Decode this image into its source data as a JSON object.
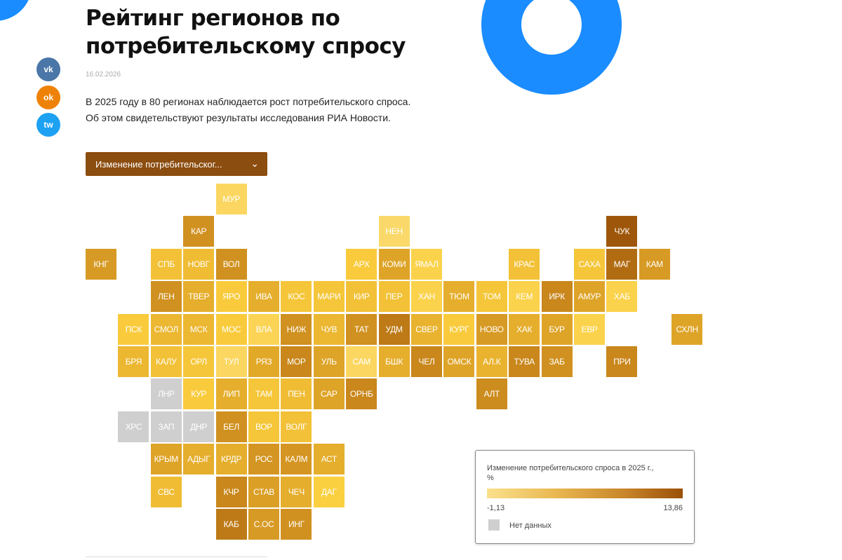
{
  "header": {
    "title": "Рейтинг регионов по потребительскому спросу",
    "date": "16.02.2026",
    "lead_line1": "В 2025 году в 80 регионах наблюдается рост потребительского спроса.",
    "lead_line2": "Об этом свидетельствуют результаты исследования РИА Новости."
  },
  "social": [
    {
      "label": "vk",
      "icon": "vk-icon",
      "color": "#4a76a8"
    },
    {
      "label": "ok",
      "icon": "odnoklassniki-icon",
      "color": "#ee8208"
    },
    {
      "label": "tw",
      "icon": "twitter-icon",
      "color": "#1da1f2"
    }
  ],
  "dropdown": {
    "label": "Изменение потребительског...",
    "chevron": "⌄"
  },
  "colors": {
    "brand_blue": "#1a8cff",
    "nodata": "#cfcfcf",
    "scale": [
      "#fae08c",
      "#fbcf3e",
      "#e3aa2a",
      "#c8861c",
      "#9a5208"
    ]
  },
  "chart_data": {
    "type": "heatmap",
    "subtype": "tile-grid-map",
    "title": "Изменение потребительского спроса в 2025 г., %",
    "range": [
      -1.13,
      13.86
    ],
    "range_labels": [
      "-1,13",
      "13,86"
    ],
    "nodata_label": "Нет данных",
    "note": "values estimated from tile color",
    "regions": [
      {
        "code": "МУР",
        "col": 4,
        "row": 0,
        "value": 1
      },
      {
        "code": "КАР",
        "col": 3,
        "row": 1,
        "value": 9
      },
      {
        "code": "НЕН",
        "col": 9,
        "row": 1,
        "value": 0.5
      },
      {
        "code": "ЧУК",
        "col": 16,
        "row": 1,
        "value": 13.5
      },
      {
        "code": "КНГ",
        "col": 0,
        "row": 2,
        "value": 8
      },
      {
        "code": "СПБ",
        "col": 2,
        "row": 2,
        "value": 4
      },
      {
        "code": "НОВГ",
        "col": 3,
        "row": 2,
        "value": 4.5
      },
      {
        "code": "ВОЛ",
        "col": 4,
        "row": 2,
        "value": 9
      },
      {
        "code": "АРХ",
        "col": 8,
        "row": 2,
        "value": 3
      },
      {
        "code": "КОМИ",
        "col": 9,
        "row": 2,
        "value": 7
      },
      {
        "code": "ЯМАЛ",
        "col": 10,
        "row": 2,
        "value": 2
      },
      {
        "code": "КРАС",
        "col": 13,
        "row": 2,
        "value": 4
      },
      {
        "code": "САХА",
        "col": 15,
        "row": 2,
        "value": 3.5
      },
      {
        "code": "МАГ",
        "col": 16,
        "row": 2,
        "value": 12
      },
      {
        "code": "КАМ",
        "col": 17,
        "row": 2,
        "value": 8
      },
      {
        "code": "ЛЕН",
        "col": 2,
        "row": 3,
        "value": 9
      },
      {
        "code": "ТВЕР",
        "col": 3,
        "row": 3,
        "value": 6
      },
      {
        "code": "ЯРО",
        "col": 4,
        "row": 3,
        "value": 3
      },
      {
        "code": "ИВА",
        "col": 5,
        "row": 3,
        "value": 6
      },
      {
        "code": "КОС",
        "col": 6,
        "row": 3,
        "value": 3.5
      },
      {
        "code": "МАРИ",
        "col": 7,
        "row": 3,
        "value": 3.5
      },
      {
        "code": "КИР",
        "col": 8,
        "row": 3,
        "value": 4
      },
      {
        "code": "ПЕР",
        "col": 9,
        "row": 3,
        "value": 4
      },
      {
        "code": "ХАН",
        "col": 10,
        "row": 3,
        "value": 2
      },
      {
        "code": "ТЮМ",
        "col": 11,
        "row": 3,
        "value": 6
      },
      {
        "code": "ТОМ",
        "col": 12,
        "row": 3,
        "value": 3.5
      },
      {
        "code": "КЕМ",
        "col": 13,
        "row": 3,
        "value": 2
      },
      {
        "code": "ИРК",
        "col": 14,
        "row": 3,
        "value": 10
      },
      {
        "code": "АМУР",
        "col": 15,
        "row": 3,
        "value": 7
      },
      {
        "code": "ХАБ",
        "col": 16,
        "row": 3,
        "value": 2
      },
      {
        "code": "ПСК",
        "col": 1,
        "row": 4,
        "value": 3
      },
      {
        "code": "СМОЛ",
        "col": 2,
        "row": 4,
        "value": 5
      },
      {
        "code": "МСК",
        "col": 3,
        "row": 4,
        "value": 5
      },
      {
        "code": "МОС",
        "col": 4,
        "row": 4,
        "value": 3
      },
      {
        "code": "ВЛА",
        "col": 5,
        "row": 4,
        "value": 1.5
      },
      {
        "code": "НИЖ",
        "col": 6,
        "row": 4,
        "value": 9
      },
      {
        "code": "ЧУВ",
        "col": 7,
        "row": 4,
        "value": 5
      },
      {
        "code": "ТАТ",
        "col": 8,
        "row": 4,
        "value": 9
      },
      {
        "code": "УДМ",
        "col": 9,
        "row": 4,
        "value": 11
      },
      {
        "code": "СВЕР",
        "col": 10,
        "row": 4,
        "value": 5.5
      },
      {
        "code": "КУРГ",
        "col": 11,
        "row": 4,
        "value": 3
      },
      {
        "code": "НОВО",
        "col": 12,
        "row": 4,
        "value": 8
      },
      {
        "code": "ХАК",
        "col": 13,
        "row": 4,
        "value": 6
      },
      {
        "code": "БУР",
        "col": 14,
        "row": 4,
        "value": 7
      },
      {
        "code": "ЕВР",
        "col": 15,
        "row": 4,
        "value": 2
      },
      {
        "code": "СХЛН",
        "col": 18,
        "row": 4,
        "value": 7
      },
      {
        "code": "БРЯ",
        "col": 1,
        "row": 5,
        "value": 5
      },
      {
        "code": "КАЛУ",
        "col": 2,
        "row": 5,
        "value": 4
      },
      {
        "code": "ОРЛ",
        "col": 3,
        "row": 5,
        "value": 3.5
      },
      {
        "code": "ТУЛ",
        "col": 4,
        "row": 5,
        "value": 1
      },
      {
        "code": "РЯЗ",
        "col": 5,
        "row": 5,
        "value": 6.5
      },
      {
        "code": "МОР",
        "col": 6,
        "row": 5,
        "value": 10
      },
      {
        "code": "УЛЬ",
        "col": 7,
        "row": 5,
        "value": 7
      },
      {
        "code": "САМ",
        "col": 8,
        "row": 5,
        "value": 1
      },
      {
        "code": "БШК",
        "col": 9,
        "row": 5,
        "value": 6
      },
      {
        "code": "ЧЕЛ",
        "col": 10,
        "row": 5,
        "value": 10
      },
      {
        "code": "ОМСК",
        "col": 11,
        "row": 5,
        "value": 7
      },
      {
        "code": "АЛ.К",
        "col": 12,
        "row": 5,
        "value": 5.5
      },
      {
        "code": "ТУВА",
        "col": 13,
        "row": 5,
        "value": 10
      },
      {
        "code": "ЗАБ",
        "col": 14,
        "row": 5,
        "value": 9
      },
      {
        "code": "ПРИ",
        "col": 16,
        "row": 5,
        "value": 10
      },
      {
        "code": "ЛНР",
        "col": 2,
        "row": 6,
        "value": null
      },
      {
        "code": "КУР",
        "col": 3,
        "row": 6,
        "value": 3
      },
      {
        "code": "ЛИП",
        "col": 4,
        "row": 6,
        "value": 6
      },
      {
        "code": "ТАМ",
        "col": 5,
        "row": 6,
        "value": 3.5
      },
      {
        "code": "ПЕН",
        "col": 6,
        "row": 6,
        "value": 4.5
      },
      {
        "code": "САР",
        "col": 7,
        "row": 6,
        "value": 7
      },
      {
        "code": "ОРНБ",
        "col": 8,
        "row": 6,
        "value": 10
      },
      {
        "code": "АЛТ",
        "col": 12,
        "row": 6,
        "value": 9.5
      },
      {
        "code": "ХРС",
        "col": 1,
        "row": 7,
        "value": null
      },
      {
        "code": "ЗАП",
        "col": 2,
        "row": 7,
        "value": null
      },
      {
        "code": "ДНР",
        "col": 3,
        "row": 7,
        "value": null
      },
      {
        "code": "БЕЛ",
        "col": 4,
        "row": 7,
        "value": 9
      },
      {
        "code": "ВОР",
        "col": 5,
        "row": 7,
        "value": 3.5
      },
      {
        "code": "ВОЛГ",
        "col": 6,
        "row": 7,
        "value": 4
      },
      {
        "code": "КРЫМ",
        "col": 2,
        "row": 8,
        "value": 7
      },
      {
        "code": "АДЫГ",
        "col": 3,
        "row": 8,
        "value": 6
      },
      {
        "code": "КРДР",
        "col": 4,
        "row": 8,
        "value": 6
      },
      {
        "code": "РОС",
        "col": 5,
        "row": 8,
        "value": 8.5
      },
      {
        "code": "КАЛМ",
        "col": 6,
        "row": 8,
        "value": 8.5
      },
      {
        "code": "АСТ",
        "col": 7,
        "row": 8,
        "value": 6
      },
      {
        "code": "СВС",
        "col": 2,
        "row": 9,
        "value": 4.5
      },
      {
        "code": "КЧР",
        "col": 4,
        "row": 9,
        "value": 10
      },
      {
        "code": "СТАВ",
        "col": 5,
        "row": 9,
        "value": 7.5
      },
      {
        "code": "ЧЕЧ",
        "col": 6,
        "row": 9,
        "value": 6
      },
      {
        "code": "ДАГ",
        "col": 7,
        "row": 9,
        "value": 2.5
      },
      {
        "code": "КАБ",
        "col": 4,
        "row": 10,
        "value": 11
      },
      {
        "code": "С.ОС",
        "col": 5,
        "row": 10,
        "value": 8
      },
      {
        "code": "ИНГ",
        "col": 6,
        "row": 10,
        "value": 9
      }
    ]
  }
}
